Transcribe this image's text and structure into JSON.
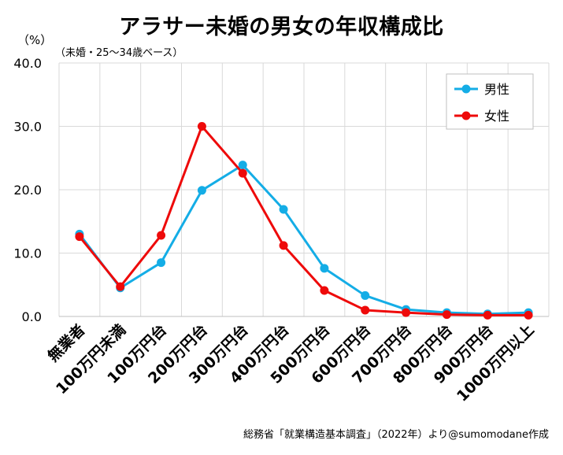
{
  "header": {
    "title": "アラサー未婚の男女の年収構成比",
    "unit": "（%）",
    "subtitle": "（未婚・25～34歳ベース）"
  },
  "footer": {
    "source": "総務省「就業構造基本調査」（2022年）より@sumomodane作成"
  },
  "colors": {
    "male": "#14ADE6",
    "female": "#EE0A0A",
    "grid": "#D9D9D9",
    "axis": "#BFBFBF"
  },
  "chart_data": {
    "type": "line",
    "title": "アラサー未婚の男女の年収構成比",
    "ylabel": "（%）",
    "xlabel": "",
    "ylim": [
      0,
      40
    ],
    "yticks": [
      "0.0",
      "10.0",
      "20.0",
      "30.0",
      "40.0"
    ],
    "grid": true,
    "legend_position": "top-right",
    "categories": [
      "無業者",
      "100万円未満",
      "100万円台",
      "200万円台",
      "300万円台",
      "400万円台",
      "500万円台",
      "600万円台",
      "700万円台",
      "800万円台",
      "900万円台",
      "1000万円以上"
    ],
    "series": [
      {
        "name": "男性",
        "color": "#14ADE6",
        "values": [
          13.0,
          4.5,
          8.5,
          19.9,
          23.9,
          16.9,
          7.6,
          3.3,
          1.1,
          0.6,
          0.4,
          0.6
        ]
      },
      {
        "name": "女性",
        "color": "#EE0A0A",
        "values": [
          12.6,
          4.7,
          12.8,
          30.0,
          22.6,
          11.2,
          4.1,
          1.0,
          0.6,
          0.3,
          0.2,
          0.2
        ]
      }
    ]
  }
}
